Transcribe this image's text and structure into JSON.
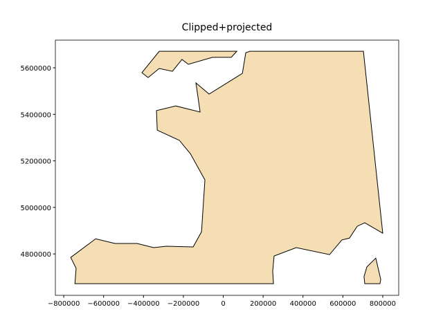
{
  "chart_data": {
    "type": "polygon",
    "title": "Clipped+projected",
    "fill": "#f5deb3",
    "edgecolor": "#000000",
    "polygons": [
      {
        "x": [
          -744000,
          -738000,
          -765000,
          -640000,
          -543000,
          -432000,
          -349000,
          -286000,
          -151000,
          -109000,
          -92000,
          -165000,
          -220000,
          -331000,
          -335000,
          -238000,
          -116000,
          -137000,
          -71000,
          96000,
          113000,
          134000,
          703000,
          800000,
          710000,
          672000,
          633000,
          595000,
          533000,
          366000,
          255000,
          248000,
          252000
        ],
        "y": [
          4672000,
          4738000,
          4785000,
          4865000,
          4845000,
          4845000,
          4827000,
          4833000,
          4830000,
          4895000,
          5118000,
          5231000,
          5288000,
          5332000,
          5416000,
          5436000,
          5410000,
          5535000,
          5487000,
          5576000,
          5665000,
          5671000,
          5671000,
          4889000,
          4934000,
          4919000,
          4868000,
          4860000,
          4797000,
          4827000,
          4791000,
          4726000,
          4672000
        ]
      },
      {
        "x": [
          -408000,
          -377000,
          -321000,
          -255000,
          -207000,
          -175000,
          -54000,
          40000,
          68000,
          -321000
        ],
        "y": [
          5579000,
          5558000,
          5597000,
          5585000,
          5636000,
          5615000,
          5645000,
          5645000,
          5671000,
          5671000
        ]
      },
      {
        "x": [
          710000,
          706000,
          720000,
          765000,
          790000,
          786000
        ],
        "y": [
          4672000,
          4702000,
          4744000,
          4782000,
          4690000,
          4672000
        ]
      }
    ],
    "xlim": [
      -842000,
      880000
    ],
    "ylim": [
      4622000,
      5719000
    ],
    "xticks": [
      {
        "value": -800000,
        "label": "−800000"
      },
      {
        "value": -600000,
        "label": "−600000"
      },
      {
        "value": -400000,
        "label": "−400000"
      },
      {
        "value": -200000,
        "label": "−200000"
      },
      0,
      200000,
      400000,
      600000,
      800000
    ],
    "yticks": [
      4800000,
      5000000,
      5200000,
      5400000,
      5600000
    ]
  }
}
